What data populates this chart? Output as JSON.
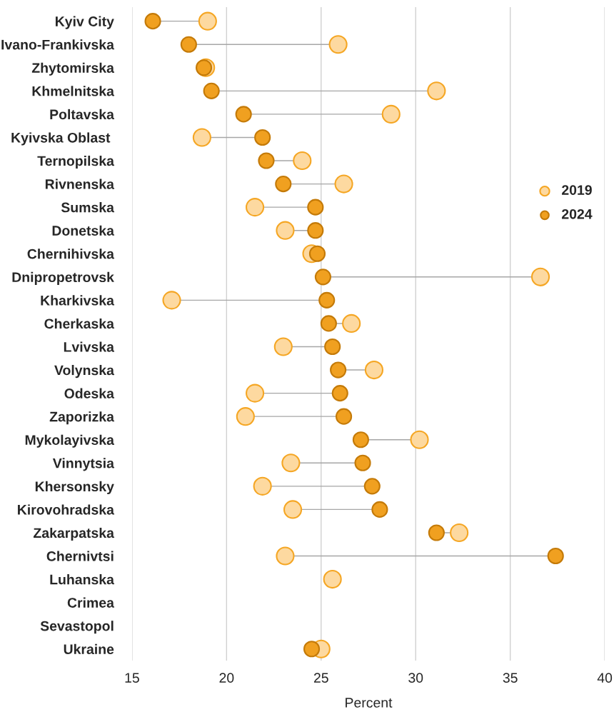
{
  "chart_data": {
    "type": "scatter",
    "orientation": "horizontal",
    "xlabel": "Percent",
    "categories": [
      "Kyiv City",
      "Ivano-Frankivska",
      "Zhytomirska",
      "Khmelnitska",
      "Poltavska",
      "Kyivska Oblast ",
      "Ternopilska",
      "Rivnenska",
      "Sumska",
      "Donetska",
      "Chernihivska",
      "Dnipropetrovsk",
      "Kharkivska",
      "Cherkaska",
      "Lvivska",
      "Volynska",
      "Odeska",
      "Zaporizka",
      "Mykolayivska",
      "Vinnytsia",
      "Khersonsky",
      "Kirovohradska",
      "Zakarpatska",
      "Chernivtsi",
      "Luhanska",
      "Crimea",
      "Sevastopol",
      "Ukraine"
    ],
    "series": [
      {
        "name": "2019",
        "color": "#fdd9a0",
        "values": [
          19.0,
          25.9,
          18.9,
          31.1,
          28.7,
          18.7,
          24.0,
          26.2,
          21.5,
          23.1,
          24.5,
          36.6,
          17.1,
          26.6,
          23.0,
          27.8,
          21.5,
          21.0,
          30.2,
          23.4,
          21.9,
          23.5,
          32.3,
          23.1,
          25.6,
          null,
          null,
          25.0
        ]
      },
      {
        "name": "2024",
        "color": "#f0a020",
        "values": [
          16.1,
          18.0,
          18.8,
          19.2,
          20.9,
          21.9,
          22.1,
          23.0,
          24.7,
          24.7,
          24.8,
          25.1,
          25.3,
          25.4,
          25.6,
          25.9,
          26.0,
          26.2,
          27.1,
          27.2,
          27.7,
          28.1,
          31.1,
          37.4,
          null,
          null,
          null,
          24.5
        ]
      }
    ],
    "xlim": [
      15,
      40
    ],
    "xticks": [
      15,
      20,
      25,
      30,
      35,
      40
    ],
    "grid": "x",
    "legend": "right",
    "marker": "circle"
  }
}
